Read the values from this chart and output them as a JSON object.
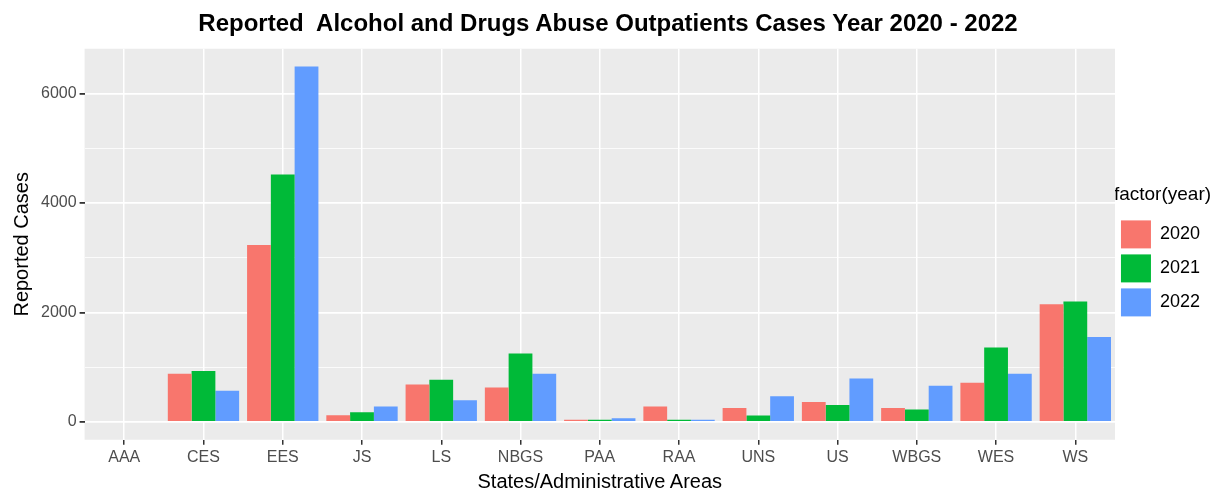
{
  "chart_data": {
    "type": "bar",
    "title": "Reported  Alcohol and Drugs Abuse Outpatients Cases Year 2020 - 2022",
    "xlabel": "States/Administrative Areas",
    "ylabel": "Reported Cases",
    "legend_title": "factor(year)",
    "legend": "right",
    "grid": true,
    "categories": [
      "AAA",
      "CES",
      "EES",
      "JS",
      "LS",
      "NBGS",
      "PAA",
      "RAA",
      "UNS",
      "US",
      "WBGS",
      "WES",
      "WS"
    ],
    "series": [
      {
        "name": "2020",
        "color": "#f8766d",
        "values": [
          0,
          880,
          3230,
          125,
          685,
          630,
          40,
          285,
          255,
          365,
          255,
          715,
          2150
        ]
      },
      {
        "name": "2021",
        "color": "#00ba38",
        "values": [
          0,
          930,
          4520,
          180,
          770,
          1250,
          40,
          40,
          120,
          310,
          230,
          1360,
          2200
        ]
      },
      {
        "name": "2022",
        "color": "#619cff",
        "values": [
          0,
          570,
          6490,
          285,
          395,
          880,
          70,
          40,
          470,
          795,
          660,
          880,
          1550
        ]
      }
    ],
    "ylim": [
      -325,
      6815
    ],
    "yticks": [
      0,
      {
        "value": 1000,
        "label": null
      },
      2000,
      {
        "value": 3000,
        "label": null
      },
      4000,
      {
        "value": 5000,
        "label": null
      },
      6000
    ]
  }
}
